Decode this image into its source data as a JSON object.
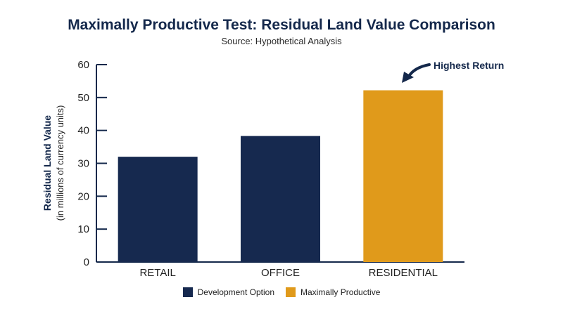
{
  "chart_data": {
    "type": "bar",
    "title": "Maximally Productive Test: Residual Land Value Comparison",
    "subtitle": "Source: Hypothetical Analysis",
    "categories": [
      "RETAIL",
      "OFFICE",
      "RESIDENTIAL"
    ],
    "values": [
      32,
      38.3,
      52.2
    ],
    "bar_series": [
      "Development Option",
      "Development Option",
      "Maximally Productive"
    ],
    "ylabel": "Residual Land Value",
    "ylabel_sub": "(in millions of currency units)",
    "xlabel": "",
    "ylim": [
      0,
      60
    ],
    "yticks": [
      0,
      10,
      20,
      30,
      40,
      50,
      60
    ],
    "grid": false,
    "legend_position": "bottom-center",
    "legend": [
      {
        "name": "Development Option",
        "color": "#16294f"
      },
      {
        "name": "Maximally Productive",
        "color": "#e09a1b"
      }
    ],
    "annotation": {
      "text": "Highest Return",
      "target_category": "RESIDENTIAL"
    }
  }
}
